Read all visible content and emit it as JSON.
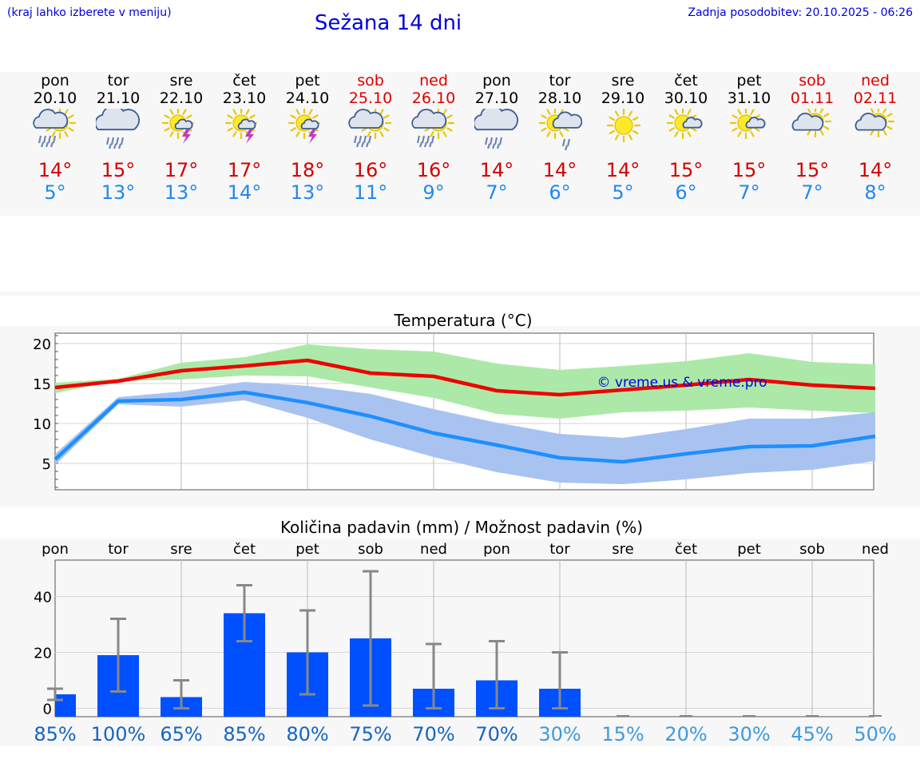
{
  "header": {
    "hint": "(kraj lahko izberete v meniju)",
    "title": "Sežana 14 dni",
    "updated": "Zadnja posodobitev: 20.10.2025 - 06:26"
  },
  "days": [
    {
      "name": "pon",
      "date": "20.10",
      "weekend": false,
      "icon": "sun-cloud-rain-icon",
      "tmax": "14°",
      "tmin": "5°"
    },
    {
      "name": "tor",
      "date": "21.10",
      "weekend": false,
      "icon": "cloud-rain-icon",
      "tmax": "15°",
      "tmin": "13°"
    },
    {
      "name": "sre",
      "date": "22.10",
      "weekend": false,
      "icon": "sun-thunder-icon",
      "tmax": "17°",
      "tmin": "13°"
    },
    {
      "name": "čet",
      "date": "23.10",
      "weekend": false,
      "icon": "sun-thunder-icon",
      "tmax": "17°",
      "tmin": "14°"
    },
    {
      "name": "pet",
      "date": "24.10",
      "weekend": false,
      "icon": "sun-thunder-icon",
      "tmax": "18°",
      "tmin": "13°"
    },
    {
      "name": "sob",
      "date": "25.10",
      "weekend": true,
      "icon": "sun-cloud-rain-icon",
      "tmax": "16°",
      "tmin": "11°"
    },
    {
      "name": "ned",
      "date": "26.10",
      "weekend": true,
      "icon": "sun-cloud-rain-icon",
      "tmax": "16°",
      "tmin": "9°"
    },
    {
      "name": "pon",
      "date": "27.10",
      "weekend": false,
      "icon": "cloud-rain-icon",
      "tmax": "14°",
      "tmin": "7°"
    },
    {
      "name": "tor",
      "date": "28.10",
      "weekend": false,
      "icon": "sun-cloud-drizzle-icon",
      "tmax": "14°",
      "tmin": "6°"
    },
    {
      "name": "sre",
      "date": "29.10",
      "weekend": false,
      "icon": "sun-icon",
      "tmax": "14°",
      "tmin": "5°"
    },
    {
      "name": "čet",
      "date": "30.10",
      "weekend": false,
      "icon": "sun-small-cloud-icon",
      "tmax": "15°",
      "tmin": "6°"
    },
    {
      "name": "pet",
      "date": "31.10",
      "weekend": false,
      "icon": "sun-small-cloud-icon",
      "tmax": "15°",
      "tmin": "7°"
    },
    {
      "name": "sob",
      "date": "01.11",
      "weekend": true,
      "icon": "sun-cloud-icon",
      "tmax": "15°",
      "tmin": "7°"
    },
    {
      "name": "ned",
      "date": "02.11",
      "weekend": true,
      "icon": "sun-cloud-icon",
      "tmax": "14°",
      "tmin": "8°"
    }
  ],
  "colors": {
    "max_line": "#ee0000",
    "max_band": "#ace9a8",
    "min_line": "#1e8fff",
    "min_band": "#a9c3f0",
    "bar": "#0050ff",
    "error": "#888888",
    "pct_dark": "#1565c0",
    "pct_light": "#3d9ae0"
  },
  "chart_data": [
    {
      "type": "line",
      "title": "Temperatura (°C)",
      "watermark": "© vreme.us & vreme.pro",
      "x_count": 14,
      "ylim": [
        1.7,
        21.3
      ],
      "yticks": [
        5,
        10,
        15,
        20
      ],
      "grid": true,
      "series": [
        {
          "name": "max",
          "values": [
            14.5,
            15.3,
            16.6,
            17.2,
            17.9,
            16.3,
            15.9,
            14.1,
            13.6,
            14.2,
            14.8,
            15.5,
            14.8,
            14.4
          ],
          "band_low": [
            13.8,
            15.3,
            15.5,
            16.0,
            15.9,
            14.5,
            13.2,
            11.2,
            10.6,
            11.4,
            11.6,
            12.0,
            11.6,
            11.3
          ],
          "band_high": [
            15.1,
            15.6,
            17.6,
            18.3,
            19.9,
            19.3,
            19.0,
            17.5,
            16.7,
            17.2,
            17.8,
            18.8,
            17.7,
            17.4
          ]
        },
        {
          "name": "min",
          "values": [
            5.5,
            12.8,
            13.0,
            13.9,
            12.6,
            10.9,
            8.8,
            7.3,
            5.7,
            5.2,
            6.2,
            7.1,
            7.2,
            8.4
          ],
          "band_low": [
            4.8,
            12.4,
            12.1,
            12.9,
            10.7,
            8.0,
            5.8,
            3.9,
            2.6,
            2.4,
            3.0,
            3.8,
            4.2,
            5.3
          ],
          "band_high": [
            6.2,
            13.3,
            14.0,
            15.2,
            14.7,
            13.7,
            11.8,
            10.1,
            8.7,
            8.2,
            9.3,
            10.6,
            10.6,
            11.4
          ]
        }
      ]
    },
    {
      "type": "bar",
      "title": "Količina padavin (mm) / Možnost padavin (%)",
      "categories": [
        "pon",
        "tor",
        "sre",
        "čet",
        "pet",
        "sob",
        "ned",
        "pon",
        "tor",
        "sre",
        "čet",
        "pet",
        "sob",
        "ned"
      ],
      "values": [
        5,
        19,
        4,
        34,
        20,
        25,
        7,
        10,
        7,
        0,
        0,
        0,
        0,
        0
      ],
      "err_low": [
        3,
        6,
        0,
        24,
        5,
        1,
        0,
        0,
        0,
        0,
        0,
        0,
        0,
        0
      ],
      "err_high": [
        7,
        32,
        10,
        44,
        35,
        49,
        23,
        24,
        20,
        0,
        0,
        0,
        0,
        0
      ],
      "ylim": [
        -3,
        53
      ],
      "yticks": [
        0,
        20,
        40
      ],
      "probability": [
        "85%",
        "100%",
        "65%",
        "85%",
        "80%",
        "75%",
        "70%",
        "70%",
        "30%",
        "15%",
        "20%",
        "30%",
        "45%",
        "50%"
      ]
    }
  ]
}
